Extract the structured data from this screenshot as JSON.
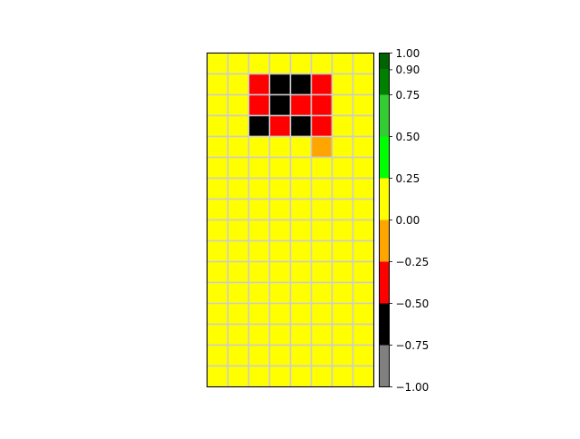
{
  "chart_data": {
    "type": "heatmap",
    "title": "",
    "xlabel": "",
    "ylabel": "",
    "rows": 16,
    "cols": 8,
    "grid": true,
    "grid_color": "#cccccc",
    "values": [
      [
        0,
        0,
        0,
        0,
        0,
        0,
        0,
        0
      ],
      [
        0,
        0,
        -0.3,
        -0.6,
        -0.6,
        -0.3,
        0,
        0
      ],
      [
        0,
        0,
        -0.3,
        -0.6,
        -0.3,
        -0.3,
        0,
        0
      ],
      [
        0,
        0,
        -0.6,
        -0.3,
        -0.6,
        -0.3,
        0,
        0
      ],
      [
        0,
        0,
        0,
        0,
        0,
        -0.1,
        0,
        0
      ],
      [
        0,
        0,
        0,
        0,
        0,
        0,
        0,
        0
      ],
      [
        0,
        0,
        0,
        0,
        0,
        0,
        0,
        0
      ],
      [
        0,
        0,
        0,
        0,
        0,
        0,
        0,
        0
      ],
      [
        0,
        0,
        0,
        0,
        0,
        0,
        0,
        0
      ],
      [
        0,
        0,
        0,
        0,
        0,
        0,
        0,
        0
      ],
      [
        0,
        0,
        0,
        0,
        0,
        0,
        0,
        0
      ],
      [
        0,
        0,
        0,
        0,
        0,
        0,
        0,
        0
      ],
      [
        0,
        0,
        0,
        0,
        0,
        0,
        0,
        0
      ],
      [
        0,
        0,
        0,
        0,
        0,
        0,
        0,
        0
      ],
      [
        0,
        0,
        0,
        0,
        0,
        0,
        0,
        0
      ],
      [
        0,
        0,
        0,
        0,
        0,
        0,
        0,
        0
      ]
    ],
    "colorbar": {
      "range": [
        -1.0,
        1.0
      ],
      "bins": [
        {
          "from": -1.0,
          "to": -0.75,
          "color": "#808080"
        },
        {
          "from": -0.75,
          "to": -0.5,
          "color": "#000000"
        },
        {
          "from": -0.5,
          "to": -0.25,
          "color": "#ff0000"
        },
        {
          "from": -0.25,
          "to": 0.0,
          "color": "#ffa500"
        },
        {
          "from": 0.0,
          "to": 0.25,
          "color": "#ffff00"
        },
        {
          "from": 0.25,
          "to": 0.5,
          "color": "#00ff00"
        },
        {
          "from": 0.5,
          "to": 0.75,
          "color": "#32cd32"
        },
        {
          "from": 0.75,
          "to": 0.9,
          "color": "#008000"
        },
        {
          "from": 0.9,
          "to": 1.0,
          "color": "#006400"
        }
      ],
      "ticks": [
        {
          "value": 1.0,
          "label": "1.00"
        },
        {
          "value": 0.9,
          "label": "0.90"
        },
        {
          "value": 0.75,
          "label": "0.75"
        },
        {
          "value": 0.5,
          "label": "0.50"
        },
        {
          "value": 0.25,
          "label": "0.25"
        },
        {
          "value": 0.0,
          "label": "0.00"
        },
        {
          "value": -0.25,
          "label": "−0.25"
        },
        {
          "value": -0.5,
          "label": "−0.50"
        },
        {
          "value": -0.75,
          "label": "−0.75"
        },
        {
          "value": -1.0,
          "label": "−1.00"
        }
      ]
    }
  }
}
